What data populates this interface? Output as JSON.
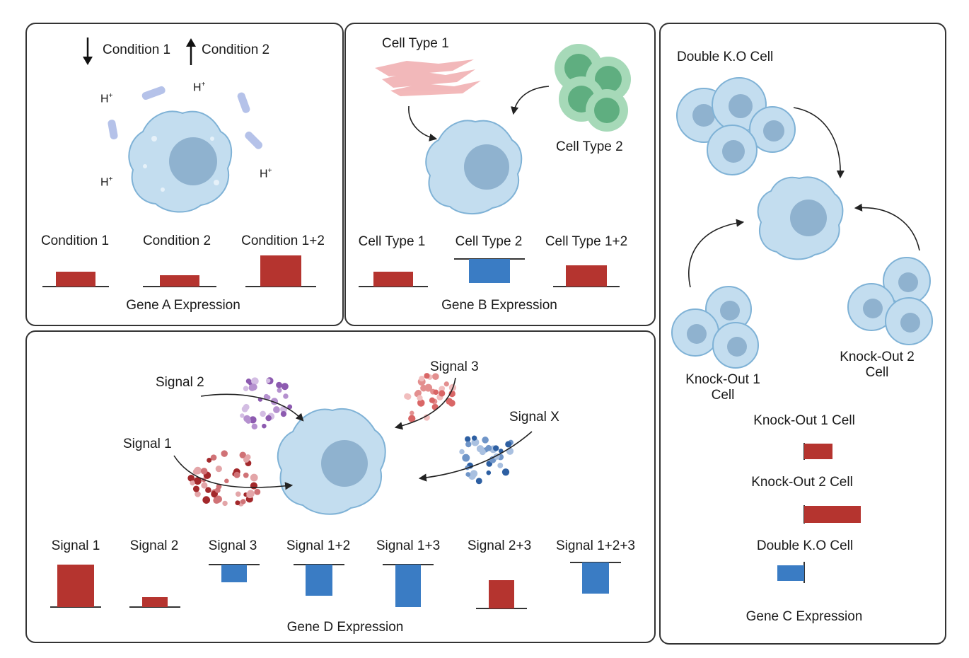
{
  "colors": {
    "up_bar": "#b5342f",
    "down_bar": "#3a7cc4",
    "cell_fill": "#c3ddef",
    "cell_stroke": "#7fb2d6",
    "nucleus": "#8fb2cf",
    "green_cell": "#6fbf8f",
    "pink_cell": "#f0a7a9",
    "bacteria": "#a9b8e6"
  },
  "panel_a": {
    "legend_down": "Condition 1",
    "legend_up": "Condition 2",
    "ion_label": "H",
    "ion_sup": "+",
    "bar_labels": [
      "Condition 1",
      "Condition 2",
      "Condition 1+2"
    ],
    "title": "Gene A Expression"
  },
  "panel_b": {
    "cell_type_1": "Cell Type 1",
    "cell_type_2": "Cell Type 2",
    "bar_labels": [
      "Cell Type 1",
      "Cell Type 2",
      "Cell Type 1+2"
    ],
    "title": "Gene B Expression"
  },
  "panel_c": {
    "top_label": "Double K.O Cell",
    "ko1_line1": "Knock-Out 1",
    "ko1_line2": "Cell",
    "ko2_line1": "Knock-Out 2",
    "ko2_line2": "Cell",
    "bar_labels": [
      "Knock-Out 1 Cell",
      "Knock-Out 2 Cell",
      "Double K.O Cell"
    ],
    "title": "Gene C Expression"
  },
  "panel_d": {
    "signal_1": "Signal 1",
    "signal_2": "Signal 2",
    "signal_3": "Signal 3",
    "signal_x": "Signal X",
    "bar_labels": [
      "Signal 1",
      "Signal 2",
      "Signal 3",
      "Signal 1+2",
      "Signal 1+3",
      "Signal 2+3",
      "Signal 1+2+3"
    ],
    "title": "Gene D Expression"
  }
}
